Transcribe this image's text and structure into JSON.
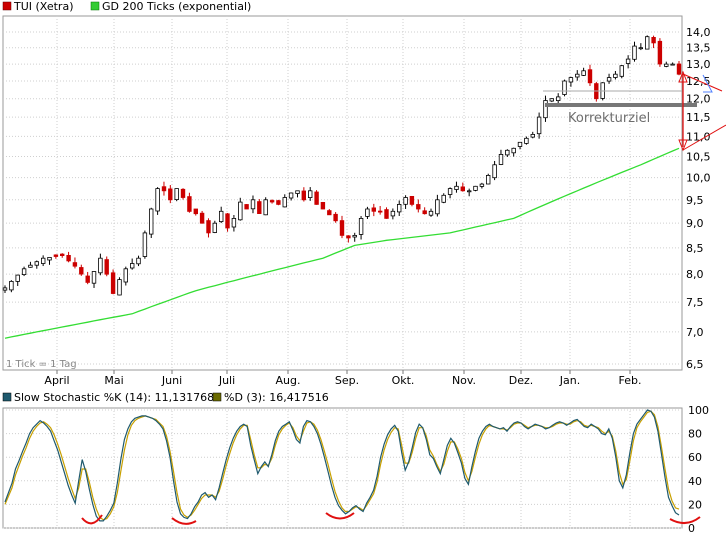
{
  "colors": {
    "up_candle": "#000000",
    "down_candle": "#cc0000",
    "ma": "#33dd33",
    "k_line": "#1f5a6e",
    "d_line": "#c8a000",
    "annotation_red": "#e01010",
    "annotation_blue": "#5080ff",
    "support": "#777777",
    "grid": "#cfcfcf",
    "bg": "#ffffff"
  },
  "chart_data": [
    {
      "type": "candlestick",
      "legend": [
        {
          "label": "TUI (Xetra)",
          "color": "#cc0000"
        },
        {
          "label": "GD 200 Ticks (exponential)",
          "color": "#33cc33"
        }
      ],
      "note": "1 Tick = 1 Tag",
      "annotation": "Korrekturziel",
      "x_ticks": [
        "April",
        "Mai",
        "Juni",
        "Juli",
        "Aug.",
        "Sep.",
        "Okt.",
        "Nov.",
        "Dez.",
        "Jan.",
        "Feb."
      ],
      "y_ticks": [
        "6,5",
        "7,0",
        "7,5",
        "8,0",
        "8,5",
        "9,0",
        "9,5",
        "10,0",
        "10,5",
        "11,0",
        "11,5",
        "12,0",
        "12,5",
        "13,0",
        "13,5",
        "14,0"
      ],
      "y_scale": "log",
      "ylim": [
        6.5,
        14.0
      ],
      "grid": true,
      "price_path": [
        [
          0,
          7.75
        ],
        [
          3,
          8.1
        ],
        [
          6,
          8.3
        ],
        [
          9,
          8.35
        ],
        [
          11,
          8.15
        ],
        [
          13,
          7.85
        ],
        [
          14,
          8.05
        ],
        [
          15,
          8.3
        ],
        [
          16,
          8.0
        ],
        [
          17,
          7.65
        ],
        [
          18,
          7.9
        ],
        [
          19,
          8.1
        ],
        [
          21,
          8.3
        ],
        [
          22,
          8.8
        ],
        [
          23,
          9.3
        ],
        [
          24,
          9.75
        ],
        [
          25,
          9.7
        ],
        [
          26,
          9.5
        ],
        [
          27,
          9.75
        ],
        [
          28,
          9.55
        ],
        [
          29,
          9.25
        ],
        [
          30,
          9.2
        ],
        [
          31,
          9.0
        ],
        [
          32,
          8.8
        ],
        [
          33,
          9.0
        ],
        [
          34,
          9.25
        ],
        [
          35,
          8.9
        ],
        [
          36,
          9.1
        ],
        [
          37,
          9.45
        ],
        [
          38,
          9.3
        ],
        [
          39,
          9.5
        ],
        [
          40,
          9.2
        ],
        [
          41,
          9.5
        ],
        [
          42,
          9.45
        ],
        [
          43,
          9.4
        ],
        [
          44,
          9.55
        ],
        [
          45,
          9.65
        ],
        [
          46,
          9.7
        ],
        [
          47,
          9.5
        ],
        [
          48,
          9.7
        ],
        [
          49,
          9.4
        ],
        [
          50,
          9.3
        ],
        [
          52,
          9.05
        ],
        [
          53,
          8.75
        ],
        [
          54,
          8.7
        ],
        [
          55,
          8.75
        ],
        [
          56,
          9.1
        ],
        [
          57,
          9.3
        ],
        [
          58,
          9.25
        ],
        [
          59,
          9.25
        ],
        [
          60,
          9.1
        ],
        [
          61,
          9.25
        ],
        [
          62,
          9.4
        ],
        [
          63,
          9.55
        ],
        [
          64,
          9.4
        ],
        [
          65,
          9.3
        ],
        [
          66,
          9.2
        ],
        [
          67,
          9.25
        ],
        [
          68,
          9.5
        ],
        [
          69,
          9.6
        ],
        [
          70,
          9.75
        ],
        [
          71,
          9.8
        ],
        [
          72,
          9.7
        ],
        [
          73,
          9.7
        ],
        [
          74,
          9.8
        ],
        [
          75,
          9.85
        ],
        [
          76,
          10.05
        ],
        [
          77,
          10.3
        ],
        [
          78,
          10.55
        ],
        [
          79,
          10.65
        ],
        [
          80,
          10.7
        ],
        [
          81,
          10.85
        ],
        [
          82,
          10.95
        ],
        [
          83,
          11.05
        ],
        [
          84,
          11.5
        ],
        [
          85,
          11.95
        ],
        [
          86,
          12.0
        ],
        [
          87,
          12.05
        ],
        [
          88,
          12.5
        ],
        [
          89,
          12.6
        ],
        [
          90,
          12.7
        ],
        [
          91,
          12.8
        ],
        [
          92,
          12.45
        ],
        [
          93,
          12.0
        ],
        [
          94,
          12.45
        ],
        [
          95,
          12.6
        ],
        [
          96,
          12.7
        ],
        [
          97,
          12.95
        ],
        [
          98,
          13.15
        ],
        [
          99,
          13.55
        ],
        [
          100,
          13.5
        ],
        [
          101,
          13.85
        ],
        [
          102,
          13.65
        ],
        [
          103,
          13.0
        ],
        [
          104,
          13.0
        ],
        [
          105,
          13.0
        ],
        [
          106,
          12.7
        ]
      ],
      "ma_path": [
        [
          0,
          6.9
        ],
        [
          10,
          7.1
        ],
        [
          20,
          7.3
        ],
        [
          30,
          7.7
        ],
        [
          40,
          8.0
        ],
        [
          50,
          8.3
        ],
        [
          55,
          8.55
        ],
        [
          60,
          8.65
        ],
        [
          70,
          8.8
        ],
        [
          80,
          9.1
        ],
        [
          90,
          9.7
        ],
        [
          100,
          10.3
        ],
        [
          106,
          10.7
        ]
      ]
    },
    {
      "type": "line",
      "legend": [
        {
          "label": "Slow Stochastic %K (14): 11,131768",
          "color": "#1f5a6e"
        },
        {
          "label": "%D (3): 16,417516",
          "color": "#6b6b00"
        }
      ],
      "y_ticks": [
        "0",
        "20",
        "40",
        "60",
        "80",
        "100"
      ],
      "ylim": [
        0,
        100
      ],
      "grid": true,
      "series": [
        {
          "values": [
            22,
            30,
            38,
            50,
            57,
            65,
            72,
            80,
            85,
            88,
            91,
            89,
            86,
            82,
            74,
            66,
            56,
            46,
            36,
            28,
            21,
            40,
            58,
            48,
            33,
            20,
            10,
            6,
            6,
            10,
            15,
            21,
            38,
            58,
            75,
            84,
            90,
            93,
            94,
            95,
            95,
            94,
            93,
            91,
            88,
            84,
            74,
            60,
            40,
            22,
            12,
            9,
            8,
            12,
            18,
            22,
            28,
            30,
            26,
            28,
            24,
            34,
            46,
            58,
            68,
            76,
            82,
            86,
            88,
            86,
            70,
            58,
            46,
            52,
            56,
            52,
            62,
            74,
            82,
            86,
            88,
            90,
            83,
            75,
            72,
            86,
            91,
            90,
            86,
            80,
            71,
            60,
            48,
            36,
            26,
            19,
            15,
            12,
            14,
            17,
            19,
            16,
            14,
            21,
            26,
            32,
            44,
            60,
            71,
            79,
            84,
            87,
            82,
            64,
            49,
            56,
            68,
            81,
            88,
            85,
            75,
            62,
            59,
            52,
            46,
            58,
            70,
            76,
            72,
            64,
            55,
            42,
            37,
            52,
            65,
            76,
            82,
            86,
            88,
            86,
            85,
            84,
            85,
            82,
            86,
            89,
            90,
            89,
            86,
            84,
            86,
            88,
            87,
            86,
            84,
            85,
            87,
            89,
            90,
            89,
            87,
            89,
            91,
            92,
            89,
            86,
            85,
            88,
            86,
            84,
            80,
            79,
            84,
            76,
            60,
            40,
            34,
            45,
            64,
            80,
            88,
            92,
            96,
            100,
            99,
            94,
            82,
            63,
            43,
            26,
            19,
            13,
            11
          ]
        },
        {
          "values": [
            20,
            27,
            34,
            45,
            53,
            61,
            68,
            76,
            82,
            86,
            89,
            90,
            88,
            85,
            79,
            71,
            62,
            52,
            42,
            33,
            25,
            34,
            50,
            50,
            39,
            26,
            16,
            9,
            7,
            8,
            12,
            18,
            30,
            48,
            66,
            79,
            87,
            91,
            93,
            94,
            95,
            94,
            93,
            92,
            89,
            86,
            78,
            65,
            48,
            30,
            16,
            11,
            9,
            11,
            15,
            20,
            25,
            28,
            28,
            28,
            26,
            31,
            41,
            53,
            63,
            72,
            79,
            84,
            87,
            87,
            75,
            62,
            51,
            51,
            54,
            53,
            59,
            70,
            79,
            84,
            87,
            89,
            85,
            78,
            74,
            82,
            89,
            90,
            88,
            83,
            75,
            65,
            54,
            42,
            31,
            23,
            17,
            14,
            14,
            16,
            18,
            17,
            15,
            19,
            24,
            29,
            39,
            54,
            66,
            75,
            81,
            85,
            84,
            70,
            55,
            55,
            64,
            76,
            85,
            85,
            78,
            66,
            61,
            54,
            48,
            54,
            65,
            73,
            73,
            67,
            59,
            47,
            40,
            48,
            60,
            71,
            79,
            84,
            87,
            86,
            85,
            84,
            84,
            83,
            85,
            88,
            89,
            89,
            87,
            85,
            86,
            87,
            87,
            86,
            85,
            85,
            86,
            88,
            89,
            89,
            88,
            88,
            90,
            91,
            90,
            87,
            86,
            87,
            86,
            85,
            82,
            80,
            82,
            78,
            65,
            47,
            37,
            41,
            57,
            74,
            85,
            90,
            94,
            98,
            99,
            96,
            86,
            69,
            50,
            33,
            23,
            17,
            16
          ]
        }
      ]
    }
  ]
}
